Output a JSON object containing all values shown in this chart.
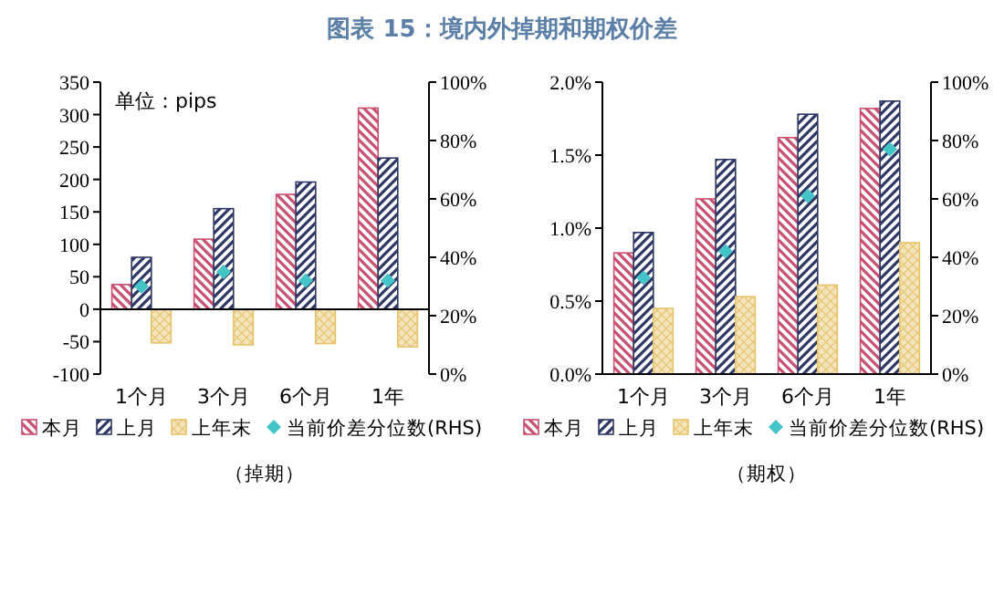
{
  "chart_data": [
    {
      "type": "bar",
      "title": "图表 15：境内外掉期和期权价差",
      "xlabel": "（掉期）",
      "annotations": [
        "单位：pips"
      ],
      "categories": [
        "1个月",
        "3个月",
        "6个月",
        "1年"
      ],
      "series": [
        {
          "name": "本月",
          "color": "#c9506e",
          "values": [
            38,
            108,
            177,
            310
          ]
        },
        {
          "name": "上月",
          "color": "#2e3866",
          "values": [
            80,
            155,
            196,
            233
          ]
        },
        {
          "name": "上年末",
          "color": "#e6c36a",
          "values": [
            -52,
            -55,
            -53,
            -58
          ]
        },
        {
          "name": "当前价差分位数(RHS)",
          "type": "scatter",
          "axis": "y2",
          "color": "#45c4c8",
          "values": [
            30,
            35,
            32,
            32
          ]
        }
      ],
      "ylim": [
        -100,
        350
      ],
      "yticks": [
        -100,
        -50,
        0,
        50,
        100,
        150,
        200,
        250,
        300,
        350
      ],
      "y2lim": [
        0,
        100
      ],
      "y2ticks": [
        {
          "value": 0,
          "label": "0%"
        },
        {
          "value": 20,
          "label": "20%"
        },
        {
          "value": 40,
          "label": "40%"
        },
        {
          "value": 60,
          "label": "60%"
        },
        {
          "value": 80,
          "label": "80%"
        },
        {
          "value": 100,
          "label": "100%"
        }
      ],
      "legend": "bottom",
      "marker": "diamond"
    },
    {
      "type": "bar",
      "xlabel": "（期权）",
      "categories": [
        "1个月",
        "3个月",
        "6个月",
        "1年"
      ],
      "series": [
        {
          "name": "本月",
          "color": "#c9506e",
          "values": [
            0.83,
            1.2,
            1.62,
            1.82
          ]
        },
        {
          "name": "上月",
          "color": "#2e3866",
          "values": [
            0.97,
            1.47,
            1.78,
            1.87
          ]
        },
        {
          "name": "上年末",
          "color": "#e6c36a",
          "values": [
            0.45,
            0.53,
            0.61,
            0.9
          ]
        },
        {
          "name": "当前价差分位数(RHS)",
          "type": "scatter",
          "axis": "y2",
          "color": "#45c4c8",
          "values": [
            33,
            42,
            61,
            77
          ]
        }
      ],
      "ylim": [
        0,
        2
      ],
      "yticks": [
        {
          "value": 0,
          "label": "0.0%"
        },
        {
          "value": 0.5,
          "label": "0.5%"
        },
        {
          "value": 1,
          "label": "1.0%"
        },
        {
          "value": 1.5,
          "label": "1.5%"
        },
        {
          "value": 2,
          "label": "2.0%"
        }
      ],
      "y2lim": [
        0,
        100
      ],
      "y2ticks": [
        {
          "value": 0,
          "label": "0%"
        },
        {
          "value": 20,
          "label": "20%"
        },
        {
          "value": 40,
          "label": "40%"
        },
        {
          "value": 60,
          "label": "60%"
        },
        {
          "value": 80,
          "label": "80%"
        },
        {
          "value": 100,
          "label": "100%"
        }
      ],
      "legend": "bottom",
      "marker": "diamond"
    }
  ]
}
